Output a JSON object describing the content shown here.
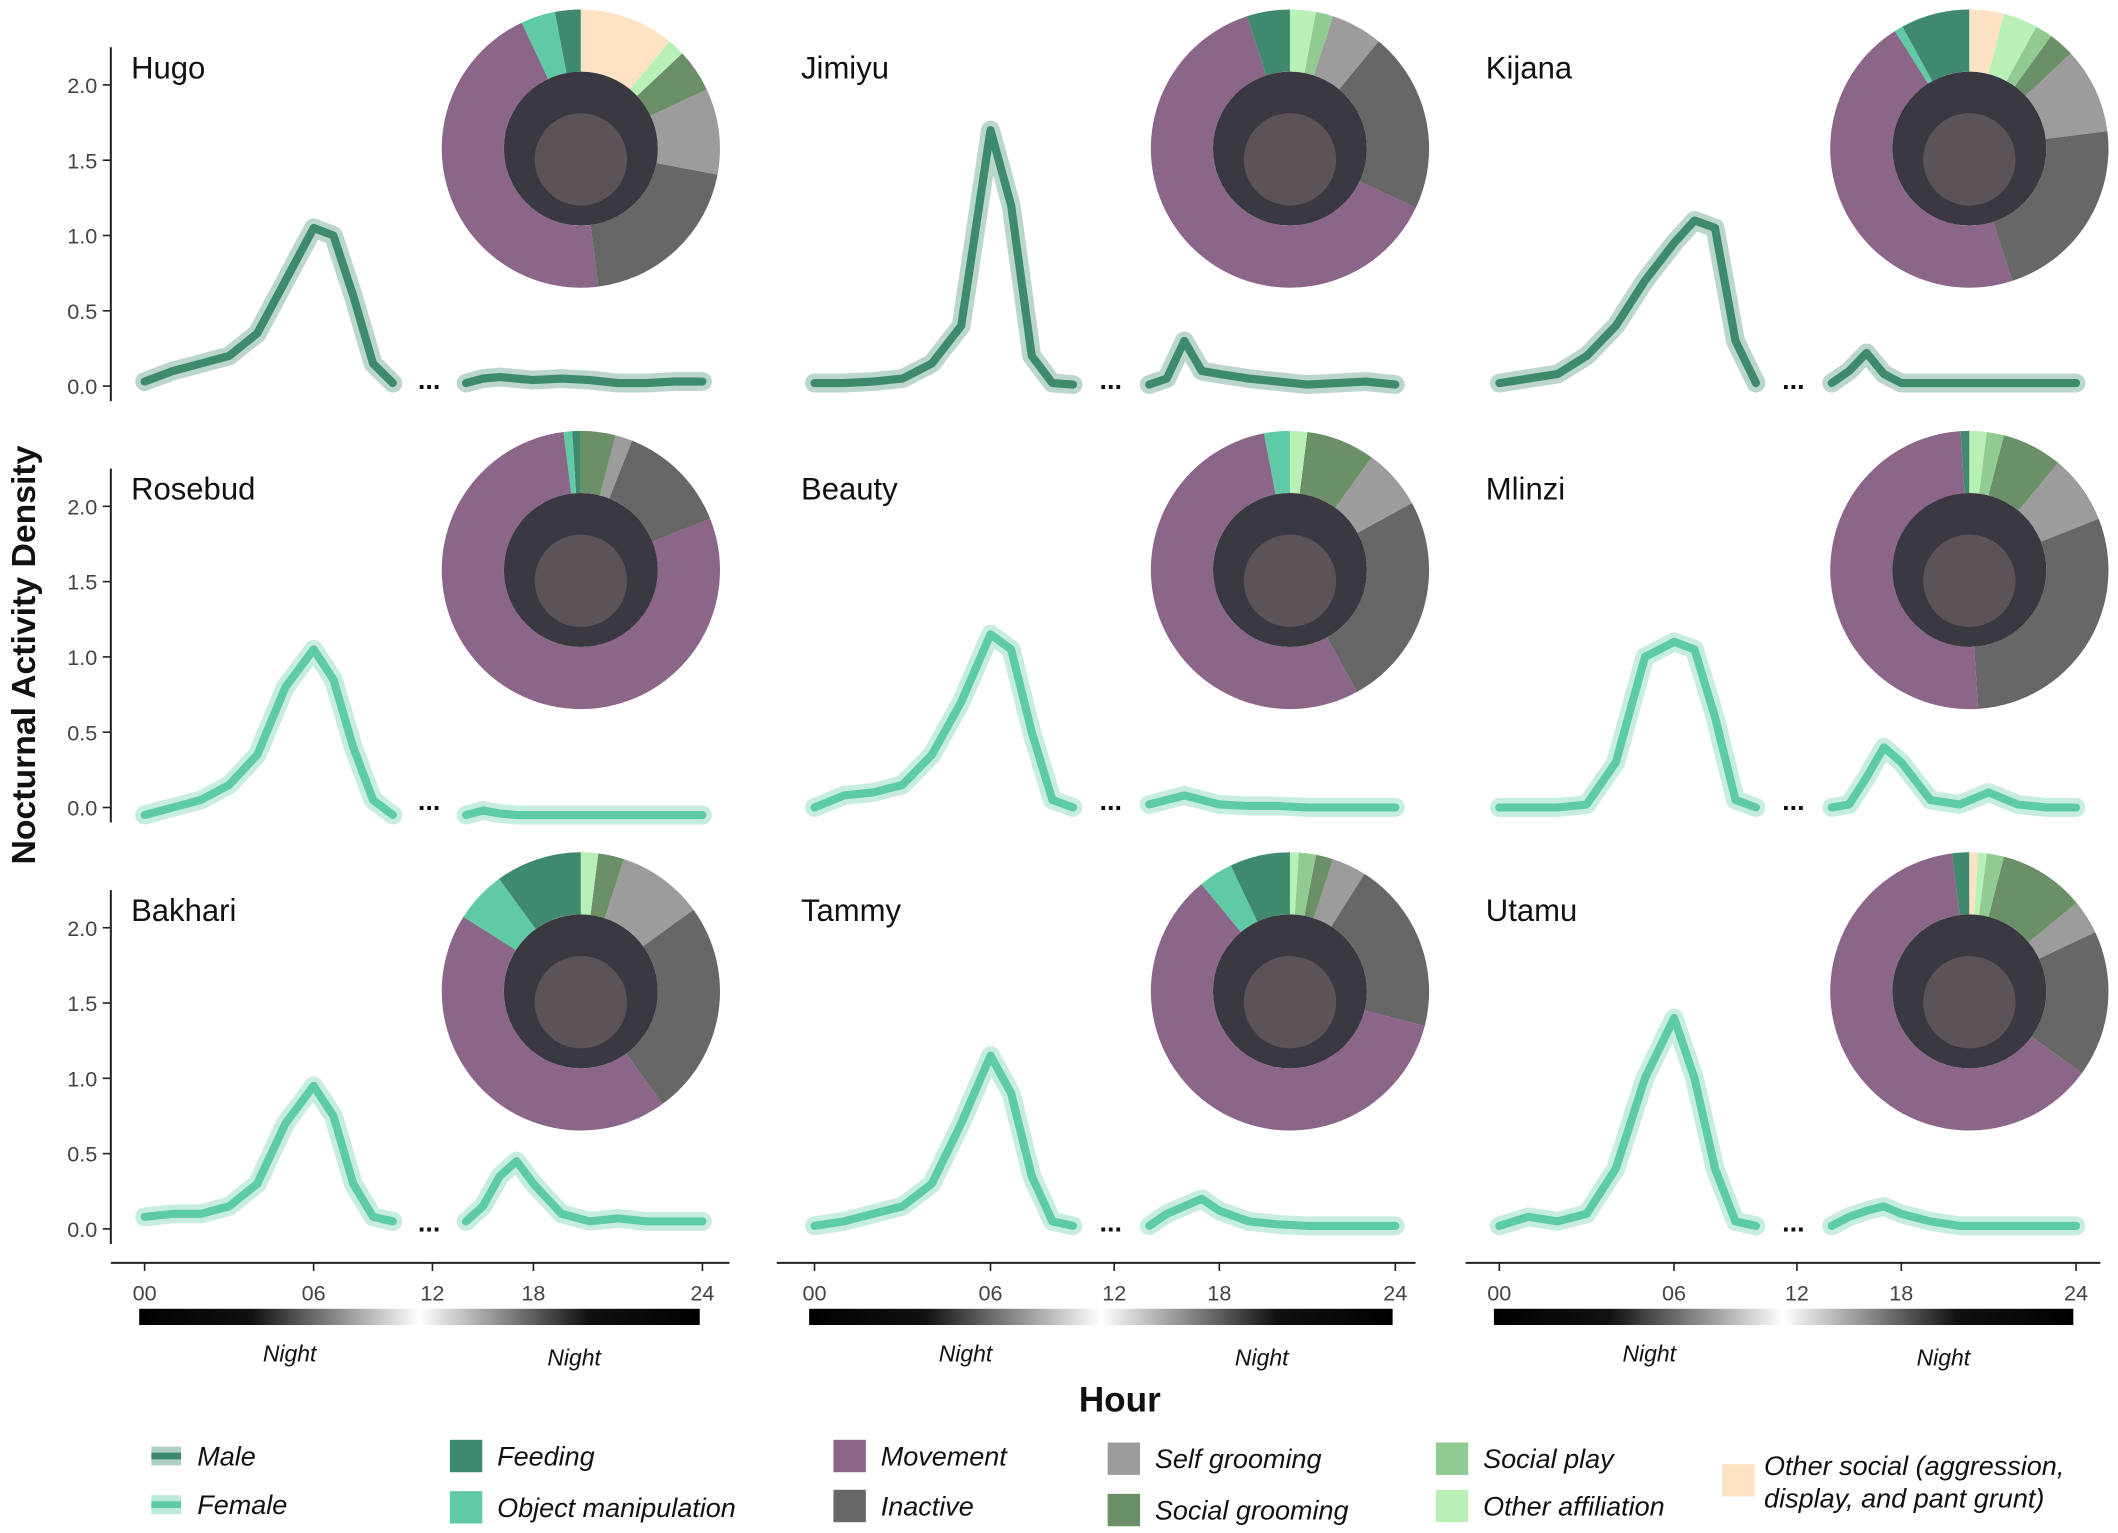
{
  "figure": {
    "ylabel": "Nocturnal Activity Density",
    "xlabel": "Hour",
    "night": "Night",
    "break_marker": "...",
    "activities": [
      {
        "name": "Feeding",
        "color": "#3f8a6e"
      },
      {
        "name": "Object manipulation",
        "color": "#5fcaa5"
      },
      {
        "name": "Movement",
        "color": "#8c6689"
      },
      {
        "name": "Inactive",
        "color": "#676767"
      },
      {
        "name": "Self grooming",
        "color": "#9c9c9c"
      },
      {
        "name": "Social grooming",
        "color": "#6b8f67"
      },
      {
        "name": "Social play",
        "color": "#92cb92"
      },
      {
        "name": "Other affiliation",
        "color": "#b8f0b8"
      },
      {
        "name": "Other social (aggression, display, and pant grunt)",
        "color": "#fde3c4"
      }
    ]
  },
  "chart_data": [
    {
      "type": "line",
      "title": "Hugo",
      "x": [
        0,
        1,
        2,
        3,
        4,
        5,
        6,
        7,
        8,
        9,
        10,
        12,
        14,
        15,
        16,
        17,
        18,
        19,
        20,
        21,
        22,
        23,
        24
      ],
      "xlim": [
        0,
        24
      ],
      "ylim": [
        -0.1,
        2.25
      ],
      "yticks": [
        {
          "value": 0,
          "label": "0.0"
        },
        0.5,
        {
          "value": 1,
          "label": "1.0"
        },
        1.5,
        {
          "value": 2,
          "label": "2.0"
        }
      ],
      "series": [
        {
          "name": "Male",
          "color": "#3d8a6c",
          "values": [
            0.03,
            0.1,
            0.15,
            0.2,
            0.35,
            0.7,
            1.05,
            1.0,
            0.6,
            0.15,
            0.02,
            null,
            0.02,
            0.05,
            0.06,
            0.05,
            0.04,
            0.05,
            0.04,
            0.02,
            0.02,
            0.03,
            0.03
          ]
        }
      ],
      "activity_values": [
        3,
        4,
        45,
        20,
        10,
        5,
        0,
        2,
        11
      ]
    },
    {
      "type": "line",
      "title": "Jimiyu",
      "x": [
        0,
        1,
        2,
        3,
        4,
        5,
        6,
        7,
        8,
        9,
        10,
        12,
        14,
        15,
        16,
        17,
        18,
        19,
        20,
        21,
        22,
        23,
        24
      ],
      "xlim": [
        0,
        24
      ],
      "ylim": [
        -0.1,
        2.25
      ],
      "series": [
        {
          "name": "Male",
          "color": "#3d8a6c",
          "values": [
            0.02,
            0.02,
            0.03,
            0.05,
            0.15,
            0.4,
            1.7,
            1.2,
            0.2,
            0.02,
            0.01,
            null,
            0.01,
            0.05,
            0.3,
            0.1,
            0.08,
            0.05,
            0.03,
            0.01,
            0.02,
            0.03,
            0.01
          ]
        }
      ],
      "activity_values": [
        5,
        0,
        63,
        21,
        6,
        0,
        2,
        3,
        0
      ]
    },
    {
      "type": "line",
      "title": "Kijana",
      "x": [
        0,
        1,
        2,
        3,
        4,
        5,
        6,
        7,
        8,
        9,
        10,
        12,
        14,
        15,
        16,
        17,
        18,
        19,
        20,
        21,
        22,
        23,
        24
      ],
      "xlim": [
        0,
        24
      ],
      "ylim": [
        -0.1,
        2.25
      ],
      "series": [
        {
          "name": "Male",
          "color": "#3d8a6c",
          "values": [
            0.02,
            0.05,
            0.08,
            0.2,
            0.4,
            0.7,
            0.95,
            1.1,
            1.05,
            0.3,
            0.02,
            null,
            0.02,
            0.1,
            0.22,
            0.08,
            0.02,
            0.02,
            0.02,
            0.02,
            0.02,
            0.02,
            0.02
          ]
        }
      ],
      "activity_values": [
        8,
        1,
        46,
        22,
        10,
        3,
        2,
        4,
        4
      ]
    },
    {
      "type": "line",
      "title": "Rosebud",
      "x": [
        0,
        1,
        2,
        3,
        4,
        5,
        6,
        7,
        8,
        9,
        10,
        12,
        14,
        15,
        16,
        17,
        18,
        19,
        20,
        21,
        22,
        23,
        24
      ],
      "xlim": [
        0,
        24
      ],
      "ylim": [
        -0.1,
        2.25
      ],
      "yticks": [
        {
          "value": 0,
          "label": "0.0"
        },
        0.5,
        {
          "value": 1,
          "label": "1.0"
        },
        1.5,
        {
          "value": 2,
          "label": "2.0"
        }
      ],
      "series": [
        {
          "name": "Female",
          "color": "#5dcba3",
          "values": [
            -0.05,
            0,
            0.05,
            0.15,
            0.35,
            0.8,
            1.05,
            0.85,
            0.4,
            0.05,
            -0.05,
            null,
            -0.05,
            -0.02,
            -0.04,
            -0.05,
            -0.05,
            -0.05,
            -0.05,
            -0.05,
            -0.05,
            -0.05,
            -0.05
          ]
        }
      ],
      "activity_values": [
        1,
        1,
        79,
        13,
        2,
        4,
        0,
        0,
        0
      ]
    },
    {
      "type": "line",
      "title": "Beauty",
      "x": [
        0,
        1,
        2,
        3,
        4,
        5,
        6,
        7,
        8,
        9,
        10,
        12,
        14,
        15,
        16,
        17,
        18,
        19,
        20,
        21,
        22,
        23,
        24
      ],
      "xlim": [
        0,
        24
      ],
      "ylim": [
        -0.1,
        2.25
      ],
      "series": [
        {
          "name": "Female",
          "color": "#5dcba3",
          "values": [
            0,
            0.08,
            0.1,
            0.15,
            0.35,
            0.7,
            1.15,
            1.05,
            0.5,
            0.05,
            0,
            null,
            0.02,
            0.05,
            0.08,
            0.05,
            0.02,
            0.01,
            0.01,
            0,
            0,
            0,
            0
          ]
        }
      ],
      "activity_values": [
        0,
        3,
        55,
        25,
        7,
        8,
        0,
        2,
        0
      ]
    },
    {
      "type": "line",
      "title": "Mlinzi",
      "x": [
        0,
        1,
        2,
        3,
        4,
        5,
        6,
        7,
        8,
        9,
        10,
        12,
        14,
        15,
        16,
        17,
        18,
        19,
        20,
        21,
        22,
        23,
        24
      ],
      "xlim": [
        0,
        24
      ],
      "ylim": [
        -0.1,
        2.25
      ],
      "series": [
        {
          "name": "Female",
          "color": "#5dcba3",
          "values": [
            0,
            0,
            0,
            0.02,
            0.3,
            1.0,
            1.1,
            1.05,
            0.6,
            0.05,
            0,
            null,
            0,
            0.02,
            0.2,
            0.4,
            0.3,
            0.05,
            0.02,
            0.1,
            0.02,
            0,
            0
          ]
        }
      ],
      "activity_values": [
        1,
        0,
        50,
        30,
        8,
        7,
        2,
        2,
        0
      ]
    },
    {
      "type": "line",
      "title": "Bakhari",
      "x": [
        0,
        1,
        2,
        3,
        4,
        5,
        6,
        7,
        8,
        9,
        10,
        12,
        14,
        15,
        16,
        17,
        18,
        19,
        20,
        21,
        22,
        23,
        24
      ],
      "xlim": [
        0,
        24
      ],
      "ylim": [
        -0.1,
        2.25
      ],
      "yticks": [
        {
          "value": 0,
          "label": "0.0"
        },
        0.5,
        {
          "value": 1,
          "label": "1.0"
        },
        1.5,
        {
          "value": 2,
          "label": "2.0"
        }
      ],
      "xticks": [
        {
          "value": 0,
          "label": "00"
        },
        {
          "value": 6,
          "label": "06"
        },
        12,
        18,
        24
      ],
      "series": [
        {
          "name": "Female",
          "color": "#5dcba3",
          "values": [
            0.08,
            0.1,
            0.1,
            0.15,
            0.3,
            0.7,
            0.95,
            0.75,
            0.3,
            0.08,
            0.05,
            null,
            0.05,
            0.15,
            0.35,
            0.45,
            0.3,
            0.1,
            0.05,
            0.07,
            0.05,
            0.05,
            0.05
          ]
        }
      ],
      "activity_values": [
        10,
        6,
        44,
        25,
        10,
        3,
        0,
        2,
        0
      ]
    },
    {
      "type": "line",
      "title": "Tammy",
      "x": [
        0,
        1,
        2,
        3,
        4,
        5,
        6,
        7,
        8,
        9,
        10,
        12,
        14,
        15,
        16,
        17,
        18,
        19,
        20,
        21,
        22,
        23,
        24
      ],
      "xlim": [
        0,
        24
      ],
      "ylim": [
        -0.1,
        2.25
      ],
      "xticks": [
        {
          "value": 0,
          "label": "00"
        },
        {
          "value": 6,
          "label": "06"
        },
        12,
        18,
        24
      ],
      "series": [
        {
          "name": "Female",
          "color": "#5dcba3",
          "values": [
            0.02,
            0.05,
            0.1,
            0.15,
            0.3,
            0.7,
            1.15,
            0.9,
            0.35,
            0.05,
            0.02,
            null,
            0.02,
            0.1,
            0.15,
            0.2,
            0.12,
            0.05,
            0.03,
            0.02,
            0.02,
            0.02,
            0.02
          ]
        }
      ],
      "activity_values": [
        7,
        4,
        60,
        20,
        4,
        2,
        2,
        1,
        0
      ]
    },
    {
      "type": "line",
      "title": "Utamu",
      "x": [
        0,
        1,
        2,
        3,
        4,
        5,
        6,
        7,
        8,
        9,
        10,
        12,
        14,
        15,
        16,
        17,
        18,
        19,
        20,
        21,
        22,
        23,
        24
      ],
      "xlim": [
        0,
        24
      ],
      "ylim": [
        -0.1,
        2.25
      ],
      "xticks": [
        {
          "value": 0,
          "label": "00"
        },
        {
          "value": 6,
          "label": "06"
        },
        12,
        18,
        24
      ],
      "series": [
        {
          "name": "Female",
          "color": "#5dcba3",
          "values": [
            0.02,
            0.08,
            0.05,
            0.1,
            0.4,
            1.0,
            1.4,
            1.0,
            0.4,
            0.05,
            0.02,
            null,
            0.02,
            0.08,
            0.12,
            0.15,
            0.1,
            0.05,
            0.02,
            0.02,
            0.02,
            0.02,
            0.02
          ]
        }
      ],
      "activity_values": [
        2,
        0,
        63,
        17,
        4,
        10,
        2,
        1,
        1
      ]
    }
  ]
}
